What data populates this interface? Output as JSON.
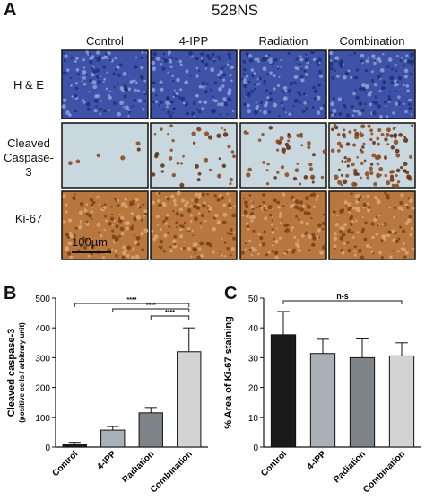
{
  "panel_a": {
    "letter": "A",
    "title": "528NS",
    "columns": [
      "Control",
      "4-IPP",
      "Radiation",
      "Combination"
    ],
    "rows": [
      "H & E",
      "Cleaved\nCaspase-3",
      "Ki-67"
    ],
    "scale_bar_label": "100µm",
    "colors": {
      "he": "#3e53a8",
      "caspase_bg": "#c9d7df",
      "caspase_stain": "#8a4418",
      "ki67": "#b8773e"
    }
  },
  "chart_data": [
    {
      "panel": "B",
      "type": "bar",
      "categories": [
        "Control",
        "4-IPP",
        "Radiation",
        "Combination"
      ],
      "values": [
        10,
        57,
        115,
        320
      ],
      "errors": [
        6,
        12,
        18,
        80
      ],
      "colors": [
        "#1a1a1a",
        "#a9b0b6",
        "#7d8387",
        "#d3d3d3"
      ],
      "ylabel": "Cleaved caspase-3",
      "ylabel_sub": "(positive cells / arbitrary unit)",
      "ylim": [
        0,
        500
      ],
      "yticks": [
        0,
        100,
        200,
        300,
        400,
        500
      ],
      "significance": [
        {
          "from": "Control",
          "to": "Combination",
          "label": "****"
        },
        {
          "from": "4-IPP",
          "to": "Combination",
          "label": "****"
        },
        {
          "from": "Radiation",
          "to": "Combination",
          "label": "****"
        }
      ]
    },
    {
      "panel": "C",
      "type": "bar",
      "categories": [
        "Control",
        "4-IPP",
        "Radiation",
        "Combination"
      ],
      "values": [
        37.7,
        31.4,
        30.0,
        30.6
      ],
      "errors": [
        7.8,
        4.8,
        6.3,
        4.4
      ],
      "colors": [
        "#1a1a1a",
        "#a9b0b6",
        "#7d8387",
        "#d3d3d3"
      ],
      "ylabel": "% Area of Ki-67 staining",
      "ylim": [
        0,
        50
      ],
      "yticks": [
        0,
        10,
        20,
        30,
        40,
        50
      ],
      "significance": [
        {
          "from": "Control",
          "to": "Combination",
          "label": "n-s"
        }
      ]
    }
  ]
}
